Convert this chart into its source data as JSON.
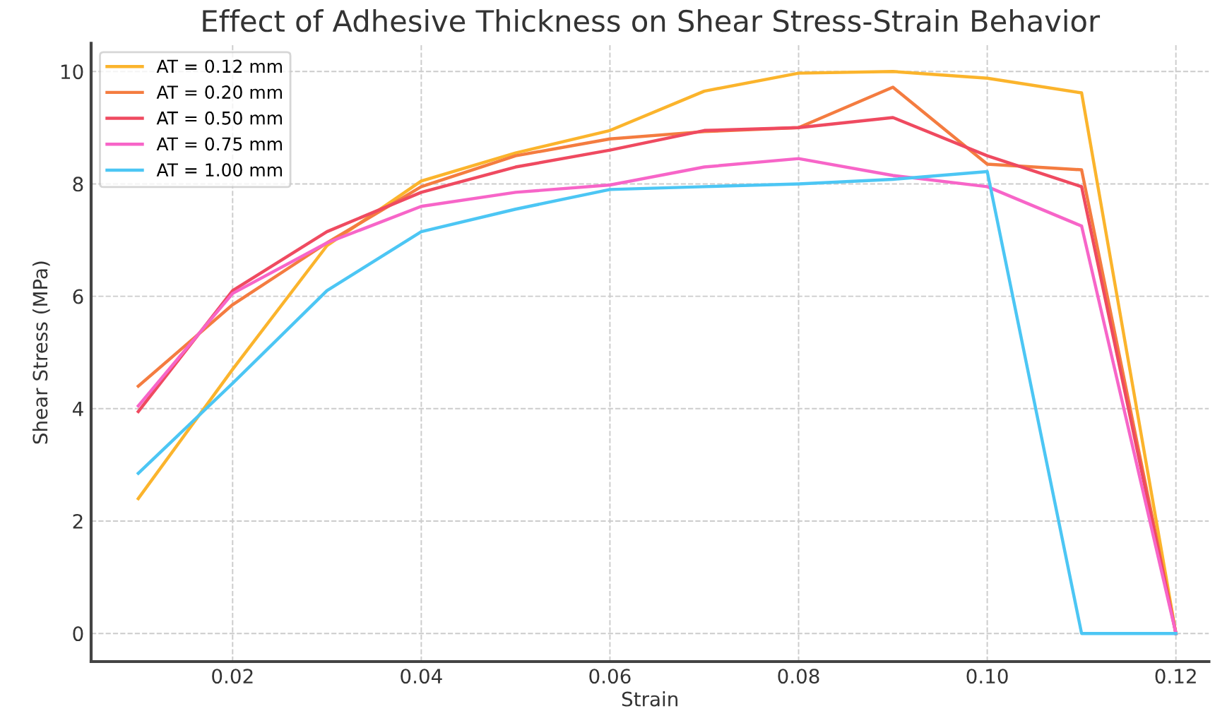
{
  "chart_data": {
    "type": "line",
    "title": "Effect of Adhesive Thickness on Shear Stress-Strain Behavior",
    "xlabel": "Strain",
    "ylabel": "Shear Stress (MPa)",
    "x": [
      0.01,
      0.02,
      0.03,
      0.04,
      0.05,
      0.06,
      0.07,
      0.08,
      0.09,
      0.1,
      0.11,
      0.12
    ],
    "series": [
      {
        "name": "AT = 0.12 mm",
        "color": "#fbb42c",
        "values": [
          2.4,
          4.7,
          6.9,
          8.05,
          8.55,
          8.95,
          9.65,
          9.97,
          10.0,
          9.88,
          9.62,
          0
        ]
      },
      {
        "name": "AT = 0.20 mm",
        "color": "#f47c40",
        "values": [
          4.4,
          5.85,
          6.95,
          7.95,
          8.5,
          8.8,
          8.93,
          9.0,
          9.72,
          8.35,
          8.25,
          0
        ]
      },
      {
        "name": "AT = 0.50 mm",
        "color": "#ef4a60",
        "values": [
          3.95,
          6.1,
          7.15,
          7.85,
          8.3,
          8.6,
          8.95,
          9.0,
          9.18,
          8.5,
          7.95,
          0
        ]
      },
      {
        "name": "AT = 0.75 mm",
        "color": "#f765c8",
        "values": [
          4.05,
          6.05,
          6.95,
          7.6,
          7.85,
          7.98,
          8.3,
          8.45,
          8.15,
          7.95,
          7.25,
          0
        ]
      },
      {
        "name": "AT = 1.00 mm",
        "color": "#4cc6f4",
        "values": [
          2.85,
          4.45,
          6.1,
          7.15,
          7.55,
          7.9,
          7.95,
          8.0,
          8.08,
          8.22,
          0,
          0
        ]
      }
    ],
    "xlim": [
      0.005,
      0.1235
    ],
    "ylim": [
      -0.5,
      10.5
    ],
    "xticks": [
      {
        "value": 0.02,
        "label": "0.02"
      },
      {
        "value": 0.04,
        "label": "0.04"
      },
      {
        "value": 0.06,
        "label": "0.06"
      },
      {
        "value": 0.08,
        "label": "0.08"
      },
      {
        "value": 0.1,
        "label": "0.10"
      },
      {
        "value": 0.12,
        "label": "0.12"
      }
    ],
    "yticks": [
      0,
      2,
      4,
      6,
      8,
      10
    ],
    "grid": true,
    "legend": "top left",
    "line_style": "solid",
    "marker": "none"
  }
}
